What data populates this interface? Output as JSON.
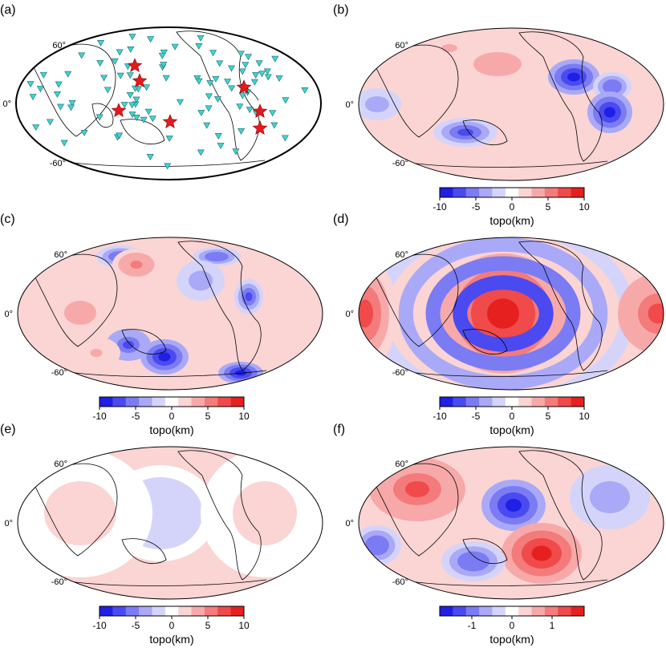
{
  "chart_data": [
    {
      "type": "map",
      "panel_label": "(a)",
      "lat_labels": [
        "60°",
        "0°",
        "-60°"
      ],
      "layers": [
        "station-markers",
        "event-stars"
      ],
      "marker_color": "#3fd3d3",
      "star_color": "#e41a1c",
      "stations_shown": "many triangles over continents, islands and ocean margins",
      "stars_count": 7
    },
    {
      "type": "heatmap",
      "panel_label": "(b)",
      "lat_labels": [
        "60°",
        "0°",
        "-60°"
      ],
      "colorbar": {
        "label": "topo(km)",
        "ticks": [
          "-10",
          "-5",
          "0",
          "5",
          "10"
        ],
        "range": [
          -10,
          10
        ]
      }
    },
    {
      "type": "heatmap",
      "panel_label": "(c)",
      "lat_labels": [
        "60°",
        "0°",
        "-60°"
      ],
      "colorbar": {
        "label": "topo(km)",
        "ticks": [
          "-10",
          "-5",
          "0",
          "5",
          "10"
        ],
        "range": [
          -10,
          10
        ]
      }
    },
    {
      "type": "heatmap",
      "panel_label": "(d)",
      "lat_labels": [
        "60°",
        "0°",
        "-60°"
      ],
      "colorbar": {
        "label": "topo(km)",
        "ticks": [
          "-10",
          "-5",
          "0",
          "5",
          "10"
        ],
        "range": [
          -10,
          10
        ]
      }
    },
    {
      "type": "heatmap",
      "panel_label": "(e)",
      "lat_labels": [
        "60°",
        "0°",
        "-60°"
      ],
      "colorbar": {
        "label": "topo(km)",
        "ticks": [
          "-10",
          "-5",
          "0",
          "5",
          "10"
        ],
        "range": [
          -10,
          10
        ]
      }
    },
    {
      "type": "heatmap",
      "panel_label": "(f)",
      "lat_labels": [
        "60°",
        "0°",
        "-60°"
      ],
      "colorbar": {
        "label": "topo(km)",
        "ticks": [
          "-1",
          "0",
          "1"
        ],
        "range": [
          -1.8,
          1.8
        ]
      }
    }
  ],
  "colormap": [
    "#1f1fe6",
    "#4a4af0",
    "#7b7bf4",
    "#a9a9f7",
    "#d4d4fb",
    "#ffffff",
    "#fbd4d4",
    "#f7a9a9",
    "#f47b7b",
    "#f04a4a",
    "#e61f1f"
  ],
  "coastline_color": "#000000"
}
